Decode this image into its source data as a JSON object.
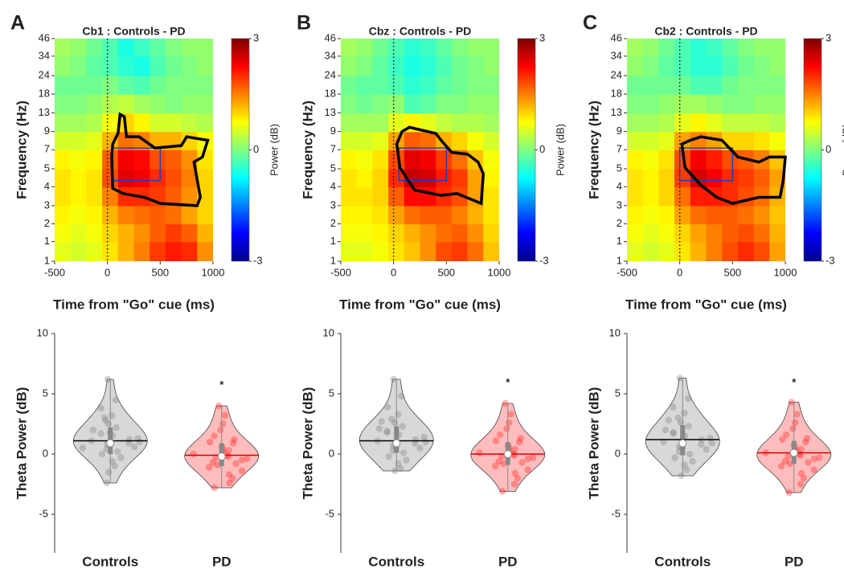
{
  "chart_data": [
    {
      "type": "heatmap",
      "panel_label": "A",
      "title": "Cb1 : Controls - PD",
      "xlabel": "Time from \"Go\" cue (ms)",
      "ylabel": "Frequency (Hz)",
      "xlim": [
        -500,
        1000
      ],
      "xticks": [
        -500,
        0,
        500,
        1000
      ],
      "ylim": [
        1,
        46
      ],
      "log_scale": true,
      "yticks": [
        1,
        {
          "value": 1.4,
          "label": "1"
        },
        {
          "value": 1.9,
          "label": "2"
        },
        {
          "value": 2.6,
          "label": "3"
        },
        {
          "value": 3.6,
          "label": "4"
        },
        {
          "value": 4.9,
          "label": "5"
        },
        {
          "value": 6.8,
          "label": "7"
        },
        {
          "value": 9.3,
          "label": "9"
        },
        {
          "value": 12.8,
          "label": "13"
        },
        {
          "value": 17.7,
          "label": "18"
        },
        {
          "value": 24.3,
          "label": "24"
        },
        {
          "value": 34,
          "label": "34"
        },
        46
      ],
      "x_edges": [
        -500,
        -350,
        -200,
        -50,
        100,
        250,
        400,
        550,
        700,
        850,
        1000
      ],
      "y_edges": [
        1,
        1.4,
        1.9,
        2.6,
        3.6,
        4.9,
        6.8,
        9.3,
        12.8,
        17.7,
        24.3,
        34,
        46
      ],
      "z": [
        [
          0.6,
          0.5,
          0.6,
          0.9,
          1.2,
          1.5,
          1.9,
          2.1,
          2.0,
          1.4
        ],
        [
          0.7,
          0.6,
          0.7,
          1.0,
          1.2,
          1.4,
          1.7,
          1.9,
          1.7,
          1.2
        ],
        [
          0.8,
          0.7,
          0.8,
          1.2,
          1.5,
          1.6,
          1.7,
          1.6,
          1.3,
          1.0
        ],
        [
          0.9,
          0.8,
          0.9,
          1.5,
          2.0,
          2.0,
          1.9,
          1.7,
          1.4,
          1.0
        ],
        [
          0.9,
          0.8,
          0.9,
          1.8,
          2.4,
          2.3,
          2.0,
          1.8,
          1.5,
          1.0
        ],
        [
          0.8,
          0.7,
          0.8,
          1.7,
          2.3,
          2.2,
          1.8,
          1.7,
          1.4,
          0.9
        ],
        [
          0.5,
          0.5,
          0.6,
          1.2,
          1.6,
          1.5,
          1.2,
          1.2,
          1.0,
          0.7
        ],
        [
          0.2,
          0.2,
          0.3,
          0.7,
          1.0,
          0.8,
          0.5,
          0.5,
          0.4,
          0.3
        ],
        [
          0.0,
          0.0,
          0.1,
          0.3,
          0.4,
          0.2,
          0.1,
          0.0,
          0.1,
          0.1
        ],
        [
          -0.1,
          -0.1,
          -0.1,
          0.0,
          -0.2,
          -0.3,
          -0.1,
          0.0,
          0.0,
          0.0
        ],
        [
          0.1,
          0.0,
          -0.2,
          -0.3,
          -0.5,
          -0.6,
          -0.3,
          -0.1,
          0.0,
          0.1
        ],
        [
          0.2,
          0.1,
          -0.1,
          -0.3,
          -0.6,
          -0.4,
          -0.2,
          0.0,
          0.1,
          0.1
        ]
      ],
      "clim": [
        -3,
        3
      ],
      "cticks": [
        3,
        0,
        -3
      ],
      "colorbar_label": "Power (dB)",
      "event_x": 0,
      "roi": {
        "x": [
          50,
          500
        ],
        "y": [
          4,
          7
        ],
        "color": "#2b3bb0"
      },
      "cluster": {
        "x": [
          50,
          100,
          120,
          160,
          180,
          300,
          450,
          700,
          750,
          950,
          900,
          820,
          880,
          850,
          500,
          350,
          150,
          50,
          40
        ],
        "y": [
          7.5,
          9,
          12.5,
          12,
          8.5,
          8.5,
          7,
          7.3,
          8.5,
          8,
          6,
          5.5,
          3,
          2.6,
          2.7,
          3,
          3.2,
          3.5,
          6
        ]
      }
    },
    {
      "type": "violin",
      "ylabel": "Theta Power (dB)",
      "categories": [
        "Controls",
        "PD"
      ],
      "ylim": [
        -8.2,
        10
      ],
      "yticks": [
        -5,
        0,
        5,
        10
      ],
      "series": [
        {
          "color": "#7f7f7f",
          "mean_color": "#000000",
          "mean": 1.1,
          "median": 0.9,
          "q1": 0.0,
          "q3": 2.2,
          "values": [
            6.2,
            4.5,
            3.8,
            3.2,
            2.8,
            2.5,
            2.2,
            2.0,
            1.7,
            1.5,
            1.3,
            1.2,
            1.1,
            1.0,
            0.9,
            0.8,
            0.6,
            0.4,
            0.2,
            0.0,
            -0.3,
            -0.6,
            -1.0,
            -1.5,
            -2.4,
            3.0,
            1.8,
            0.5
          ]
        },
        {
          "color": "#ff2020",
          "mean_color": "#d40000",
          "mean": -0.1,
          "median": -0.2,
          "q1": -1.0,
          "q3": 0.9,
          "values": [
            4.0,
            3.2,
            2.5,
            2.0,
            1.5,
            1.2,
            0.9,
            0.6,
            0.4,
            0.2,
            0.0,
            -0.1,
            -0.2,
            -0.3,
            -0.5,
            -0.7,
            -0.9,
            -1.1,
            -1.4,
            -1.7,
            -2.0,
            -2.4,
            -2.8,
            0.3,
            -0.4,
            1.0,
            -0.8
          ]
        }
      ],
      "annotations": [
        {
          "text": "*",
          "x": "PD",
          "y": 5.7
        }
      ]
    },
    {
      "type": "heatmap",
      "panel_label": "B",
      "title": "Cbz : Controls - PD",
      "xlabel": "Time from \"Go\" cue (ms)",
      "ylabel": "Frequency (Hz)",
      "xlim": [
        -500,
        1000
      ],
      "xticks": [
        -500,
        0,
        500,
        1000
      ],
      "ylim": [
        1,
        46
      ],
      "log_scale": true,
      "yticks": [
        1,
        {
          "value": 1.4,
          "label": "1"
        },
        {
          "value": 1.9,
          "label": "2"
        },
        {
          "value": 2.6,
          "label": "3"
        },
        {
          "value": 3.6,
          "label": "4"
        },
        {
          "value": 4.9,
          "label": "5"
        },
        {
          "value": 6.8,
          "label": "7"
        },
        {
          "value": 9.3,
          "label": "9"
        },
        {
          "value": 12.8,
          "label": "13"
        },
        {
          "value": 17.7,
          "label": "18"
        },
        {
          "value": 24.3,
          "label": "24"
        },
        {
          "value": 34,
          "label": "34"
        },
        46
      ],
      "x_edges": [
        -500,
        -350,
        -200,
        -50,
        100,
        250,
        400,
        550,
        700,
        850,
        1000
      ],
      "y_edges": [
        1,
        1.4,
        1.9,
        2.6,
        3.6,
        4.9,
        6.8,
        9.3,
        12.8,
        17.7,
        24.3,
        34,
        46
      ],
      "z": [
        [
          0.6,
          0.6,
          0.7,
          0.9,
          1.1,
          1.4,
          1.8,
          1.9,
          1.6,
          1.1
        ],
        [
          0.7,
          0.7,
          0.8,
          1.0,
          1.2,
          1.4,
          1.6,
          1.7,
          1.4,
          1.0
        ],
        [
          0.8,
          0.8,
          0.9,
          1.3,
          1.6,
          1.7,
          1.7,
          1.5,
          1.2,
          0.9
        ],
        [
          0.9,
          0.9,
          1.0,
          1.7,
          2.2,
          2.2,
          2.0,
          1.8,
          1.3,
          0.9
        ],
        [
          0.9,
          0.8,
          1.0,
          2.0,
          2.6,
          2.5,
          2.1,
          1.9,
          1.3,
          0.8
        ],
        [
          0.8,
          0.7,
          0.9,
          1.8,
          2.4,
          2.3,
          1.9,
          1.6,
          1.1,
          0.7
        ],
        [
          0.5,
          0.5,
          0.6,
          1.3,
          1.7,
          1.6,
          1.2,
          1.0,
          0.7,
          0.5
        ],
        [
          0.2,
          0.2,
          0.2,
          0.6,
          0.8,
          0.6,
          0.4,
          0.3,
          0.3,
          0.2
        ],
        [
          0.0,
          -0.1,
          0.0,
          0.1,
          -0.3,
          -0.2,
          0.0,
          0.0,
          0.1,
          0.1
        ],
        [
          -0.1,
          -0.2,
          -0.2,
          -0.3,
          -0.5,
          -0.4,
          -0.2,
          -0.1,
          0.0,
          0.0
        ],
        [
          0.1,
          0.0,
          -0.2,
          -0.4,
          -0.6,
          -0.5,
          -0.3,
          -0.1,
          0.0,
          0.1
        ],
        [
          0.2,
          0.1,
          -0.1,
          -0.3,
          -0.5,
          -0.4,
          -0.2,
          0.0,
          0.1,
          0.1
        ]
      ],
      "clim": [
        -3,
        3
      ],
      "cticks": [
        3,
        0,
        -3
      ],
      "colorbar_label": "Power (dB)",
      "event_x": 0,
      "roi": {
        "x": [
          50,
          500
        ],
        "y": [
          4,
          7
        ],
        "color": "#2b3bb0"
      },
      "cluster": {
        "x": [
          80,
          150,
          400,
          450,
          550,
          700,
          800,
          850,
          830,
          600,
          450,
          200,
          140,
          60,
          30
        ],
        "y": [
          9.3,
          10,
          9,
          8,
          6.5,
          6.3,
          5.5,
          4.5,
          2.7,
          3.2,
          3.1,
          3.4,
          4,
          5,
          7.5
        ]
      }
    },
    {
      "type": "violin",
      "ylabel": "Theta Power (dB)",
      "categories": [
        "Controls",
        "PD"
      ],
      "ylim": [
        -8.2,
        10
      ],
      "yticks": [
        -5,
        0,
        5,
        10
      ],
      "series": [
        {
          "color": "#7f7f7f",
          "mean_color": "#000000",
          "mean": 1.1,
          "median": 0.9,
          "q1": 0.1,
          "q3": 2.3,
          "values": [
            6.2,
            4.8,
            3.9,
            3.3,
            2.9,
            2.6,
            2.3,
            2.1,
            1.8,
            1.6,
            1.4,
            1.2,
            1.1,
            1.0,
            0.9,
            0.7,
            0.5,
            0.3,
            0.1,
            -0.2,
            -0.5,
            -0.8,
            -1.2,
            -1.4,
            2.7,
            1.9,
            0.6
          ]
        },
        {
          "color": "#ff2020",
          "mean_color": "#d40000",
          "mean": 0.0,
          "median": 0.0,
          "q1": -0.9,
          "q3": 1.0,
          "values": [
            4.2,
            3.3,
            2.6,
            2.1,
            1.6,
            1.3,
            1.0,
            0.7,
            0.5,
            0.3,
            0.1,
            0.0,
            -0.1,
            -0.2,
            -0.4,
            -0.6,
            -0.8,
            -1.0,
            -1.3,
            -1.6,
            -2.0,
            -2.5,
            -3.1,
            0.4,
            -0.3,
            1.1,
            -0.7
          ]
        }
      ],
      "annotations": [
        {
          "text": "*",
          "x": "PD",
          "y": 5.9
        }
      ]
    },
    {
      "type": "heatmap",
      "panel_label": "C",
      "title": "Cb2 : Controls - PD",
      "xlabel": "Time from \"Go\" cue (ms)",
      "ylabel": "Frequency (Hz)",
      "xlim": [
        -500,
        1000
      ],
      "xticks": [
        -500,
        0,
        500,
        1000
      ],
      "ylim": [
        1,
        46
      ],
      "log_scale": true,
      "yticks": [
        1,
        {
          "value": 1.4,
          "label": "1"
        },
        {
          "value": 1.9,
          "label": "2"
        },
        {
          "value": 2.6,
          "label": "3"
        },
        {
          "value": 3.6,
          "label": "4"
        },
        {
          "value": 4.9,
          "label": "5"
        },
        {
          "value": 6.8,
          "label": "7"
        },
        {
          "value": 9.3,
          "label": "9"
        },
        {
          "value": 12.8,
          "label": "13"
        },
        {
          "value": 17.7,
          "label": "18"
        },
        {
          "value": 24.3,
          "label": "24"
        },
        {
          "value": 34,
          "label": "34"
        },
        46
      ],
      "x_edges": [
        -500,
        -350,
        -200,
        -50,
        100,
        250,
        400,
        550,
        700,
        850,
        1000
      ],
      "y_edges": [
        1,
        1.4,
        1.9,
        2.6,
        3.6,
        4.9,
        6.8,
        9.3,
        12.8,
        17.7,
        24.3,
        34,
        46
      ],
      "z": [
        [
          0.6,
          0.5,
          0.6,
          0.9,
          1.2,
          1.5,
          1.8,
          2.0,
          1.8,
          1.3
        ],
        [
          0.7,
          0.6,
          0.7,
          1.0,
          1.3,
          1.5,
          1.7,
          1.8,
          1.6,
          1.2
        ],
        [
          0.8,
          0.7,
          0.8,
          1.3,
          1.6,
          1.7,
          1.7,
          1.6,
          1.4,
          1.1
        ],
        [
          0.9,
          0.8,
          1.0,
          1.6,
          2.1,
          2.1,
          2.0,
          1.8,
          1.6,
          1.2
        ],
        [
          0.9,
          0.8,
          1.0,
          1.9,
          2.5,
          2.3,
          2.0,
          1.9,
          1.7,
          1.3
        ],
        [
          0.8,
          0.7,
          0.9,
          1.8,
          2.3,
          2.1,
          1.8,
          1.7,
          1.5,
          1.1
        ],
        [
          0.5,
          0.5,
          0.6,
          1.3,
          1.5,
          1.3,
          1.0,
          1.0,
          0.9,
          0.7
        ],
        [
          0.2,
          0.2,
          0.3,
          0.6,
          0.8,
          0.6,
          0.4,
          0.4,
          0.4,
          0.3
        ],
        [
          0.0,
          0.0,
          0.1,
          0.2,
          0.2,
          0.1,
          0.0,
          0.0,
          0.1,
          0.1
        ],
        [
          -0.1,
          -0.1,
          -0.1,
          -0.1,
          -0.3,
          -0.3,
          -0.1,
          0.0,
          0.0,
          0.0
        ],
        [
          0.1,
          0.0,
          -0.2,
          -0.3,
          -0.5,
          -0.5,
          -0.3,
          -0.1,
          0.0,
          0.1
        ],
        [
          0.2,
          0.1,
          -0.1,
          -0.3,
          -0.5,
          -0.4,
          -0.2,
          0.0,
          0.1,
          0.1
        ]
      ],
      "clim": [
        -3,
        3
      ],
      "cticks": [
        3,
        0,
        -3
      ],
      "colorbar_label": "Power (dB)",
      "event_x": 0,
      "roi": {
        "x": [
          0,
          500
        ],
        "y": [
          4,
          7
        ],
        "color": "#2b3bb0"
      },
      "cluster": {
        "x": [
          20,
          100,
          200,
          400,
          550,
          750,
          850,
          1000,
          980,
          950,
          750,
          500,
          350,
          200,
          50
        ],
        "y": [
          7.5,
          8,
          8.5,
          8,
          6,
          5.5,
          6,
          6,
          4,
          3,
          3,
          2.7,
          3,
          3.7,
          5
        ]
      }
    },
    {
      "type": "violin",
      "ylabel": "Theta Power (dB)",
      "categories": [
        "Controls",
        "PD"
      ],
      "ylim": [
        -8.2,
        10
      ],
      "yticks": [
        -5,
        0,
        5,
        10
      ],
      "series": [
        {
          "color": "#7f7f7f",
          "mean_color": "#000000",
          "mean": 1.2,
          "median": 0.9,
          "q1": -0.1,
          "q3": 2.4,
          "values": [
            6.3,
            4.6,
            3.9,
            3.4,
            3.0,
            2.6,
            2.3,
            2.0,
            1.8,
            1.5,
            1.3,
            1.2,
            1.0,
            0.9,
            0.8,
            0.6,
            0.4,
            0.2,
            0.0,
            -0.3,
            -0.6,
            -0.9,
            -1.3,
            -1.8,
            2.8,
            1.7,
            0.5
          ]
        },
        {
          "color": "#ff2020",
          "mean_color": "#d40000",
          "mean": 0.1,
          "median": 0.1,
          "q1": -0.8,
          "q3": 1.1,
          "values": [
            4.3,
            3.3,
            2.6,
            2.1,
            1.6,
            1.3,
            1.0,
            0.7,
            0.5,
            0.3,
            0.1,
            0.0,
            -0.1,
            -0.2,
            -0.4,
            -0.6,
            -0.8,
            -1.0,
            -1.3,
            -1.6,
            -2.0,
            -2.5,
            -3.2,
            0.4,
            -0.3,
            1.2,
            -0.7
          ]
        }
      ],
      "annotations": [
        {
          "text": "*",
          "x": "PD",
          "y": 5.9
        }
      ]
    }
  ]
}
